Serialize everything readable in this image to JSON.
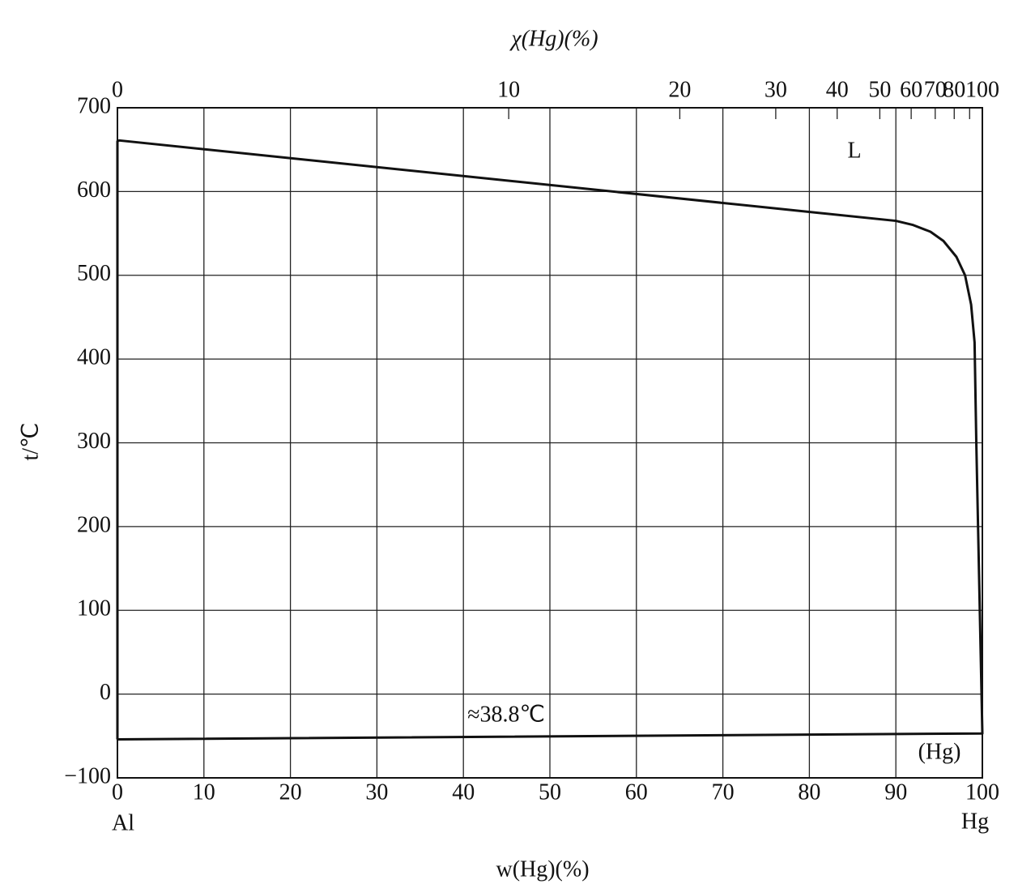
{
  "chart_data": {
    "type": "line",
    "title": "χ(Hg)(%)",
    "xlabel": "w(Hg)(%)",
    "ylabel": "t/℃",
    "xlim": [
      0,
      100
    ],
    "xticks": [
      0,
      10,
      20,
      30,
      40,
      50,
      60,
      70,
      80,
      90,
      100
    ],
    "ylim": [
      -100,
      700
    ],
    "yticks": [
      {
        "value": -100,
        "label": "−100"
      },
      0,
      100,
      200,
      300,
      400,
      500,
      600,
      700
    ],
    "x2ticks": [
      0,
      10,
      20,
      30,
      40,
      50,
      60,
      70,
      80,
      100
    ],
    "x2minor": [
      90
    ],
    "grid": true,
    "color": "#111",
    "x": [
      0,
      0,
      0.2,
      90,
      92,
      94,
      95.5,
      97,
      98,
      98.7,
      99.1,
      99.3,
      100,
      0
    ],
    "values": [
      -54,
      660,
      661,
      565,
      560,
      552,
      541,
      522,
      500,
      465,
      420,
      300,
      -47,
      -54
    ],
    "annotations": [
      "L",
      "≈38.8℃",
      "(Hg)",
      "Al",
      "Hg"
    ]
  }
}
